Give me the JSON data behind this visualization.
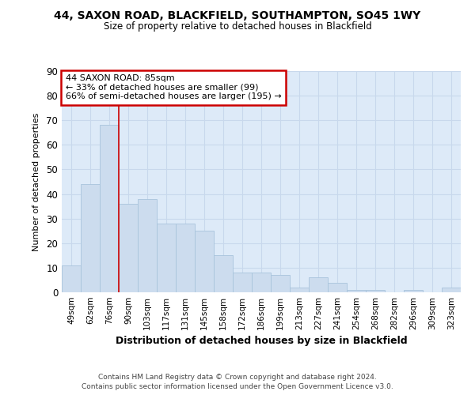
{
  "title1": "44, SAXON ROAD, BLACKFIELD, SOUTHAMPTON, SO45 1WY",
  "title2": "Size of property relative to detached houses in Blackfield",
  "xlabel": "Distribution of detached houses by size in Blackfield",
  "ylabel": "Number of detached properties",
  "categories": [
    "49sqm",
    "62sqm",
    "76sqm",
    "90sqm",
    "103sqm",
    "117sqm",
    "131sqm",
    "145sqm",
    "158sqm",
    "172sqm",
    "186sqm",
    "199sqm",
    "213sqm",
    "227sqm",
    "241sqm",
    "254sqm",
    "268sqm",
    "282sqm",
    "296sqm",
    "309sqm",
    "323sqm"
  ],
  "values": [
    11,
    44,
    68,
    36,
    38,
    28,
    28,
    25,
    15,
    8,
    8,
    7,
    2,
    6,
    4,
    1,
    1,
    0,
    1,
    0,
    2
  ],
  "bar_color": "#ccdcee",
  "bar_edge_color": "#a8c4dc",
  "grid_color": "#c8d8ec",
  "bg_color": "#ddeaf8",
  "fig_color": "#ffffff",
  "vline_x": 2.5,
  "vline_color": "#cc0000",
  "ann_line1": "44 SAXON ROAD: 85sqm",
  "ann_line2": "← 33% of detached houses are smaller (99)",
  "ann_line3": "66% of semi-detached houses are larger (195) →",
  "annotation_box_color": "#ffffff",
  "annotation_box_edge": "#cc0000",
  "ylim": [
    0,
    90
  ],
  "yticks": [
    0,
    10,
    20,
    30,
    40,
    50,
    60,
    70,
    80,
    90
  ],
  "footer1": "Contains HM Land Registry data © Crown copyright and database right 2024.",
  "footer2": "Contains public sector information licensed under the Open Government Licence v3.0."
}
